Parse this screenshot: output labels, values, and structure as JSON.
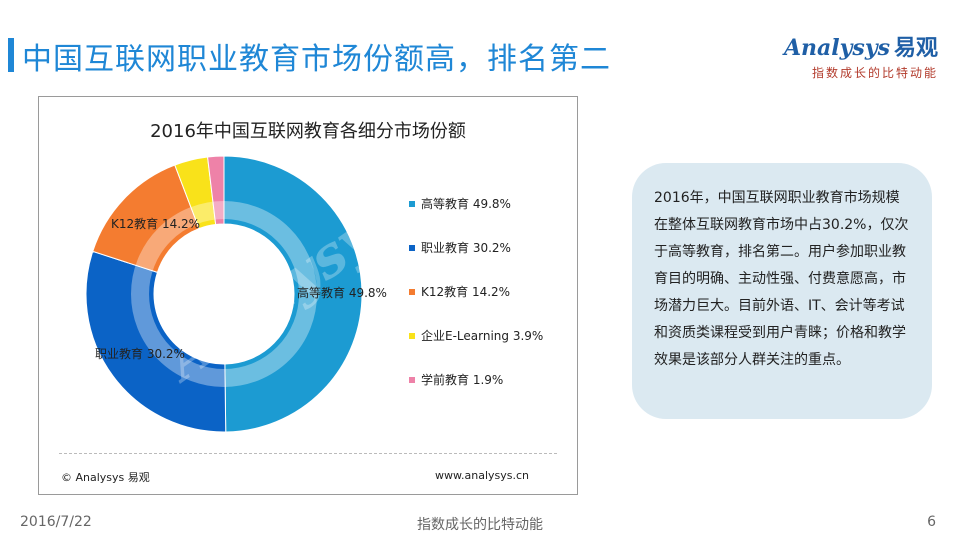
{
  "page": {
    "title": "中国互联网职业教育市场份额高，排名第二"
  },
  "logo": {
    "brand": "Analysys",
    "brand_cn": "易观",
    "slogan": "指数成长的比特动能"
  },
  "chart_data": {
    "type": "pie",
    "title": "2016年中国互联网教育各细分市场份额",
    "donut": true,
    "unit": "%",
    "categories": [
      "高等教育",
      "职业教育",
      "K12教育",
      "企业E-Learning",
      "学前教育"
    ],
    "values": [
      49.8,
      30.2,
      14.2,
      3.9,
      1.9
    ],
    "colors": [
      "#1c9bd2",
      "#0b63c6",
      "#f47c30",
      "#f9e21a",
      "#ee82a8"
    ],
    "legend_position": "right",
    "watermark": "Analysys",
    "source_left": "© Analysys 易观",
    "source_right": "www.analysys.cn"
  },
  "note": {
    "text": "2016年，中国互联网职业教育市场规模在整体互联网教育市场中占30.2%，仅次于高等教育，排名第二。用户参加职业教育目的明确、主动性强、付费意愿高，市场潜力巨大。目前外语、IT、会计等考试和资质类课程受到用户青睐；价格和教学效果是该部分人群关注的重点。"
  },
  "footer": {
    "date": "2016/7/22",
    "center": "指数成长的比特动能",
    "page_number": "6"
  }
}
